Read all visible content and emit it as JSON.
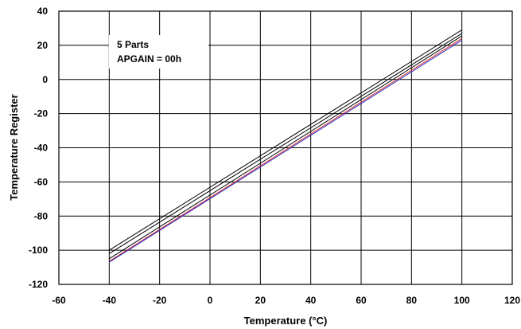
{
  "chart_data": {
    "type": "line",
    "title": "",
    "xlabel": "Temperature (°C)",
    "ylabel": "Temperature Register",
    "xlim": [
      -60,
      120
    ],
    "ylim": [
      -120,
      40
    ],
    "x_ticks": [
      "-60",
      "-40",
      "-20",
      "0",
      "20",
      "40",
      "60",
      "80",
      "100",
      "120"
    ],
    "y_ticks": [
      "40",
      "20",
      "0",
      "-20",
      "-40",
      "-60",
      "-80",
      "-100",
      "-120"
    ],
    "grid": true,
    "legend": "none",
    "annotation": [
      "5 Parts",
      "APGAIN = 00h"
    ],
    "series": [
      {
        "color": "#000000",
        "x": [
          -40,
          100
        ],
        "y": [
          -100,
          29
        ]
      },
      {
        "color": "#000000",
        "x": [
          -40,
          100
        ],
        "y": [
          -102,
          27
        ]
      },
      {
        "color": "#000000",
        "x": [
          -40,
          100
        ],
        "y": [
          -105,
          25.5
        ]
      },
      {
        "color": "#cc2222",
        "x": [
          -40,
          100
        ],
        "y": [
          -106.5,
          24
        ]
      },
      {
        "color": "#2a2ad0",
        "x": [
          -40,
          100
        ],
        "y": [
          -107,
          23
        ]
      }
    ]
  }
}
